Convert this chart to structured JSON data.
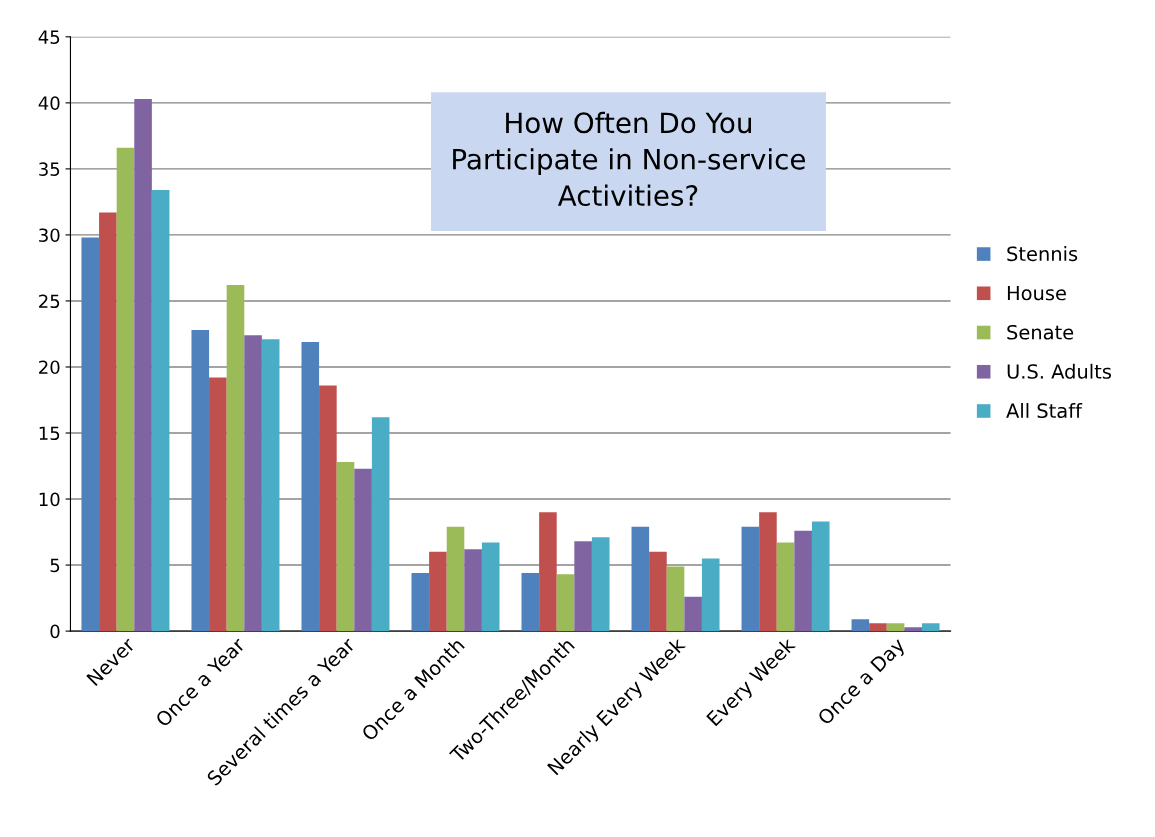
{
  "chart_data": {
    "type": "bar",
    "title": "How Often Do You\nParticipate in Non-service\nActivities?",
    "categories": [
      "Never",
      "Once a Year",
      "Several times a Year",
      "Once a Month",
      "Two-Three/Month",
      "Nearly Every Week",
      "Every Week",
      "Once a Day"
    ],
    "series": [
      {
        "name": "Stennis",
        "color": "#4f81bd",
        "values": [
          29.8,
          22.8,
          21.9,
          4.4,
          4.4,
          7.9,
          7.9,
          0.9
        ]
      },
      {
        "name": "House",
        "color": "#c0504d",
        "values": [
          31.7,
          19.2,
          18.6,
          6.0,
          9.0,
          6.0,
          9.0,
          0.6
        ]
      },
      {
        "name": "Senate",
        "color": "#9bbb59",
        "values": [
          36.6,
          26.2,
          12.8,
          7.9,
          4.3,
          4.9,
          6.7,
          0.6
        ]
      },
      {
        "name": "U.S. Adults",
        "color": "#8064a2",
        "values": [
          40.3,
          22.4,
          12.3,
          6.2,
          6.8,
          2.6,
          7.6,
          0.3
        ]
      },
      {
        "name": "All Staff",
        "color": "#4bacc6",
        "values": [
          33.4,
          22.1,
          16.2,
          6.7,
          7.1,
          5.5,
          8.3,
          0.6
        ]
      }
    ],
    "ylim": [
      0,
      45
    ],
    "yticks": [
      0,
      5,
      10,
      15,
      20,
      25,
      30,
      35,
      40,
      45
    ],
    "grid": "y",
    "legend": "right"
  }
}
